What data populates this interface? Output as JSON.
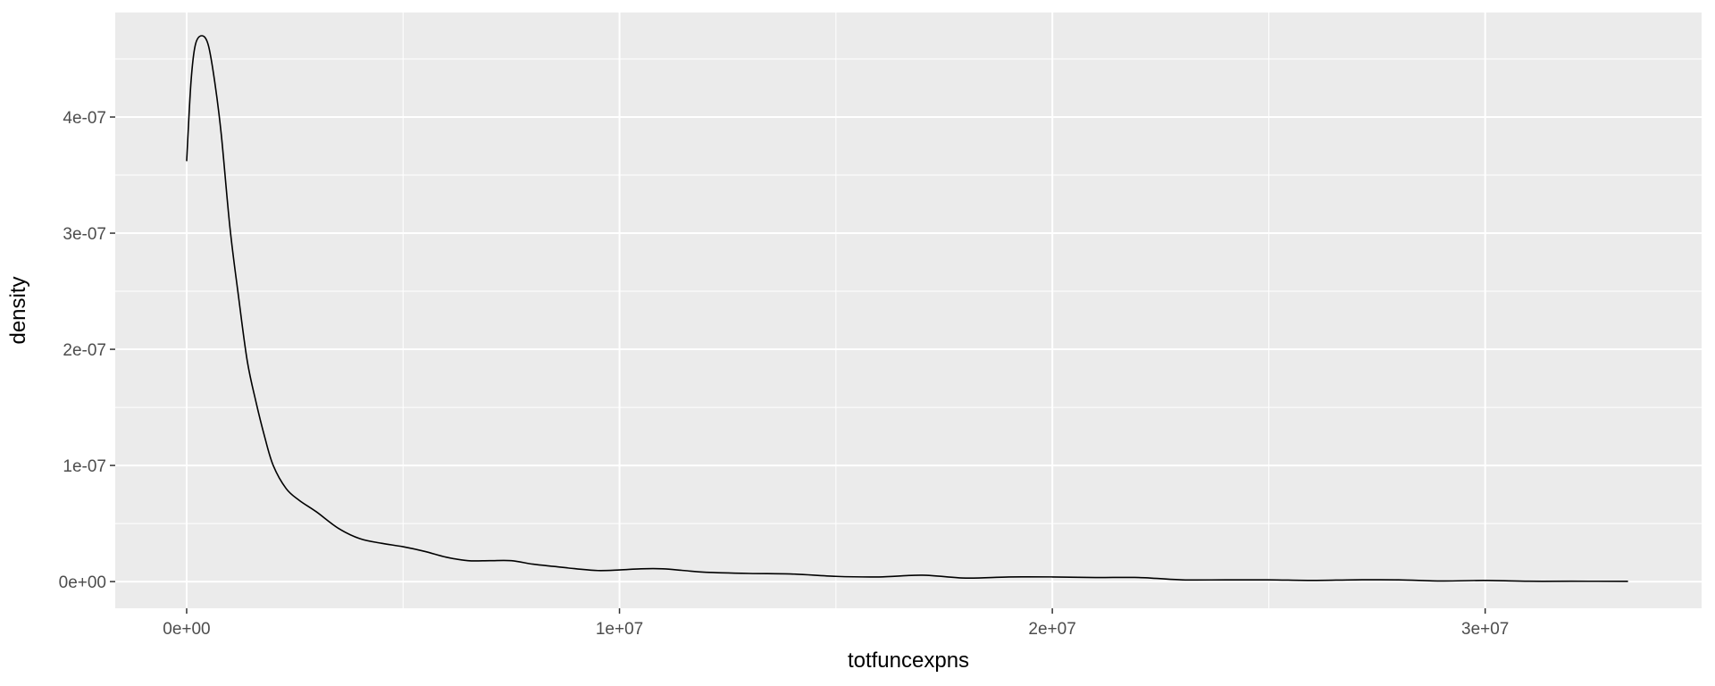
{
  "chart_data": {
    "type": "line",
    "title": "",
    "xlabel": "totfuncexpns",
    "ylabel": "density",
    "xlim": [
      -1650000,
      35000000
    ],
    "ylim": [
      -2.3e-08,
      4.9e-07
    ],
    "x_ticks": [
      {
        "value": 0,
        "label": "0e+00"
      },
      {
        "value": 10000000,
        "label": "1e+07"
      },
      {
        "value": 20000000,
        "label": "2e+07"
      },
      {
        "value": 30000000,
        "label": "3e+07"
      }
    ],
    "y_ticks": [
      {
        "value": 0,
        "label": "0e+00"
      },
      {
        "value": 1e-07,
        "label": "1e-07"
      },
      {
        "value": 2e-07,
        "label": "2e-07"
      },
      {
        "value": 3e-07,
        "label": "3e-07"
      },
      {
        "value": 4e-07,
        "label": "4e-07"
      }
    ],
    "grid": true,
    "legend": "none",
    "series": [
      {
        "x": [
          0,
          100000,
          200000,
          350000,
          500000,
          650000,
          800000,
          1000000,
          1200000,
          1400000,
          1600000,
          1800000,
          2000000,
          2300000,
          2600000,
          3000000,
          3500000,
          4000000,
          4500000,
          5000000,
          5500000,
          6000000,
          6500000,
          7000000,
          7500000,
          8000000,
          8500000,
          9000000,
          9500000,
          10000000,
          10500000,
          11000000,
          11500000,
          12000000,
          13000000,
          14000000,
          15000000,
          16000000,
          17000000,
          18000000,
          19000000,
          20000000,
          21000000,
          22000000,
          23000000,
          24000000,
          25000000,
          26000000,
          27000000,
          28000000,
          29000000,
          30000000,
          31000000,
          32000000,
          33300000
        ],
        "y": [
          3.62e-07,
          4.3e-07,
          4.62e-07,
          4.7e-07,
          4.62e-07,
          4.3e-07,
          3.85e-07,
          3.05e-07,
          2.45e-07,
          1.9e-07,
          1.55e-07,
          1.25e-07,
          1e-07,
          8e-08,
          7e-08,
          6e-08,
          4.6e-08,
          3.7e-08,
          3.3e-08,
          3e-08,
          2.6e-08,
          2.1e-08,
          1.8e-08,
          1.8e-08,
          1.8e-08,
          1.5e-08,
          1.3e-08,
          1.1e-08,
          9.5e-09,
          1e-08,
          1.1e-08,
          1.1e-08,
          9.5e-09,
          8e-09,
          7e-09,
          6.5e-09,
          4.5e-09,
          4e-09,
          5.5e-09,
          3e-09,
          4e-09,
          4e-09,
          3.5e-09,
          3.5e-09,
          1.5e-09,
          1.5e-09,
          1.5e-09,
          1e-09,
          1.5e-09,
          1.5e-09,
          5e-10,
          1e-09,
          3e-10,
          3e-10,
          2e-10
        ]
      }
    ]
  }
}
